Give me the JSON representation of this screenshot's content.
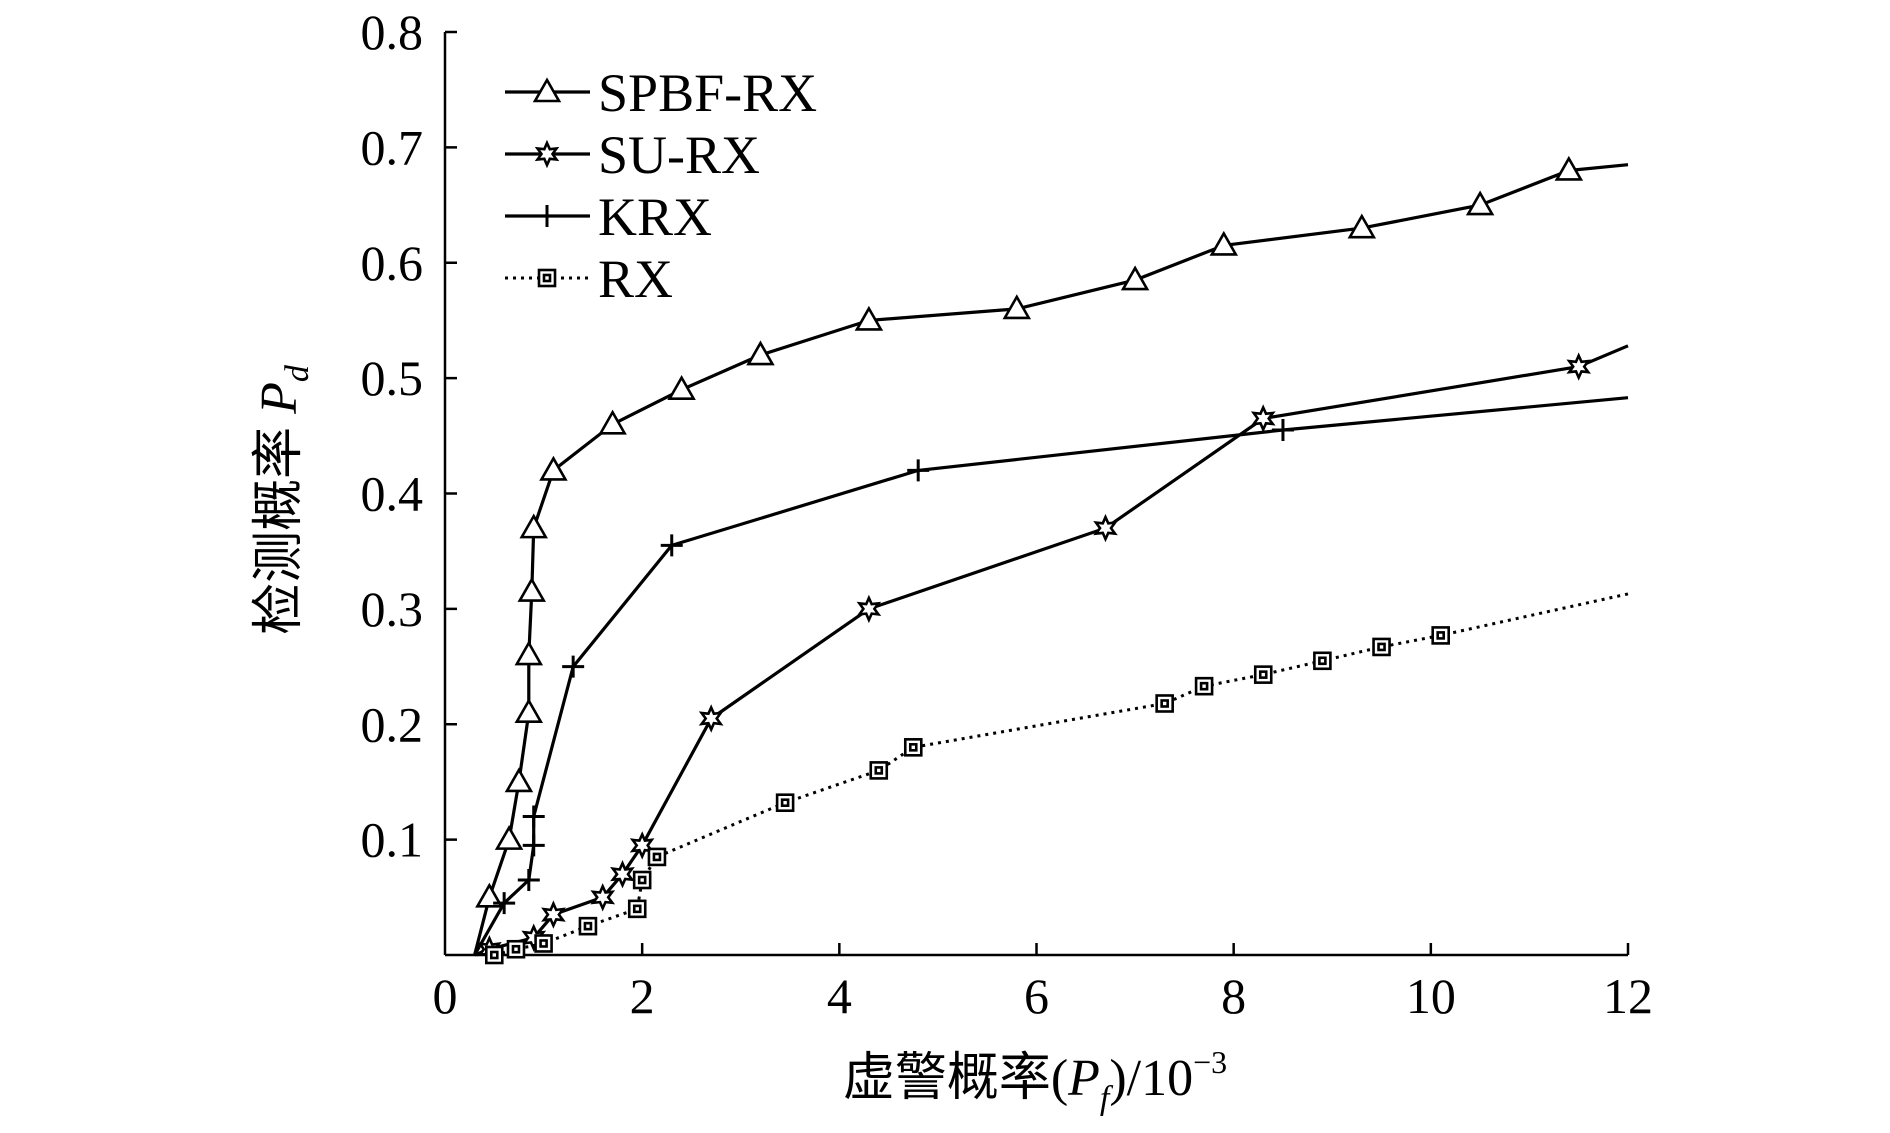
{
  "chart_data": {
    "type": "line",
    "title": "",
    "xlabel": "虚警概率(P_f)/10^-3",
    "xlabel_parts": {
      "prefix": "虚警概率(",
      "var": "P",
      "sub": "f",
      "mid": ")/10",
      "sup": "−3"
    },
    "ylabel": "检测概率 P_d",
    "ylabel_parts": {
      "prefix": "检测概率 ",
      "var": "P",
      "sub": "d"
    },
    "xlim": [
      0,
      12
    ],
    "ylim": [
      0,
      0.8
    ],
    "x_ticks": [
      0,
      2,
      4,
      6,
      8,
      10,
      12
    ],
    "x_tick_labels": [
      "0",
      "2",
      "4",
      "6",
      "8",
      "10",
      "12"
    ],
    "y_ticks": [
      0.1,
      0.2,
      0.3,
      0.4,
      0.5,
      0.6,
      0.7,
      0.8
    ],
    "y_tick_labels": [
      "0.1",
      "0.2",
      "0.3",
      "0.4",
      "0.5",
      "0.6",
      "0.7",
      "0.8"
    ],
    "grid": false,
    "legend_position": "top-left",
    "series": [
      {
        "name": "SPBF-RX",
        "marker": "triangle",
        "line_style": "solid",
        "x": [
          0.3,
          0.45,
          0.65,
          0.75,
          0.85,
          0.85,
          0.88,
          0.9,
          1.1,
          1.7,
          2.4,
          3.2,
          4.3,
          5.8,
          7.0,
          7.9,
          9.3,
          10.5,
          11.4,
          12.0
        ],
        "y": [
          0.0,
          0.05,
          0.1,
          0.15,
          0.21,
          0.26,
          0.315,
          0.37,
          0.42,
          0.46,
          0.49,
          0.52,
          0.55,
          0.56,
          0.585,
          0.615,
          0.63,
          0.65,
          0.68,
          0.685
        ],
        "marker_indices": [
          1,
          2,
          3,
          4,
          5,
          6,
          7,
          8,
          9,
          10,
          11,
          12,
          13,
          14,
          15,
          16,
          17,
          18
        ]
      },
      {
        "name": "SU-RX",
        "marker": "star",
        "line_style": "solid",
        "x": [
          0.3,
          0.45,
          0.9,
          1.1,
          1.6,
          1.8,
          2.0,
          2.7,
          4.3,
          6.7,
          8.3,
          11.5,
          12.0
        ],
        "y": [
          0.0,
          0.005,
          0.015,
          0.035,
          0.05,
          0.07,
          0.095,
          0.205,
          0.3,
          0.37,
          0.465,
          0.51,
          0.528
        ],
        "marker_indices": [
          1,
          2,
          3,
          4,
          5,
          6,
          7,
          8,
          9,
          10,
          11
        ]
      },
      {
        "name": "KRX",
        "marker": "plus",
        "line_style": "solid",
        "x": [
          0.3,
          0.6,
          0.85,
          0.9,
          0.9,
          1.3,
          2.3,
          4.8,
          8.5,
          12.0
        ],
        "y": [
          0.0,
          0.045,
          0.065,
          0.095,
          0.12,
          0.25,
          0.355,
          0.42,
          0.455,
          0.483
        ],
        "marker_indices": [
          1,
          2,
          3,
          4,
          5,
          6,
          7,
          8
        ]
      },
      {
        "name": "RX",
        "marker": "square",
        "line_style": "dotted",
        "x": [
          0.5,
          0.72,
          1.0,
          1.45,
          1.95,
          2.0,
          2.15,
          3.45,
          4.4,
          4.75,
          7.3,
          7.7,
          8.3,
          8.9,
          9.5,
          10.1,
          12.0
        ],
        "y": [
          0.0,
          0.005,
          0.01,
          0.025,
          0.04,
          0.065,
          0.085,
          0.132,
          0.16,
          0.18,
          0.218,
          0.233,
          0.243,
          0.255,
          0.267,
          0.277,
          0.313
        ],
        "marker_indices": [
          0,
          1,
          2,
          3,
          4,
          5,
          6,
          7,
          8,
          9,
          10,
          11,
          12,
          13,
          14,
          15
        ]
      }
    ]
  }
}
